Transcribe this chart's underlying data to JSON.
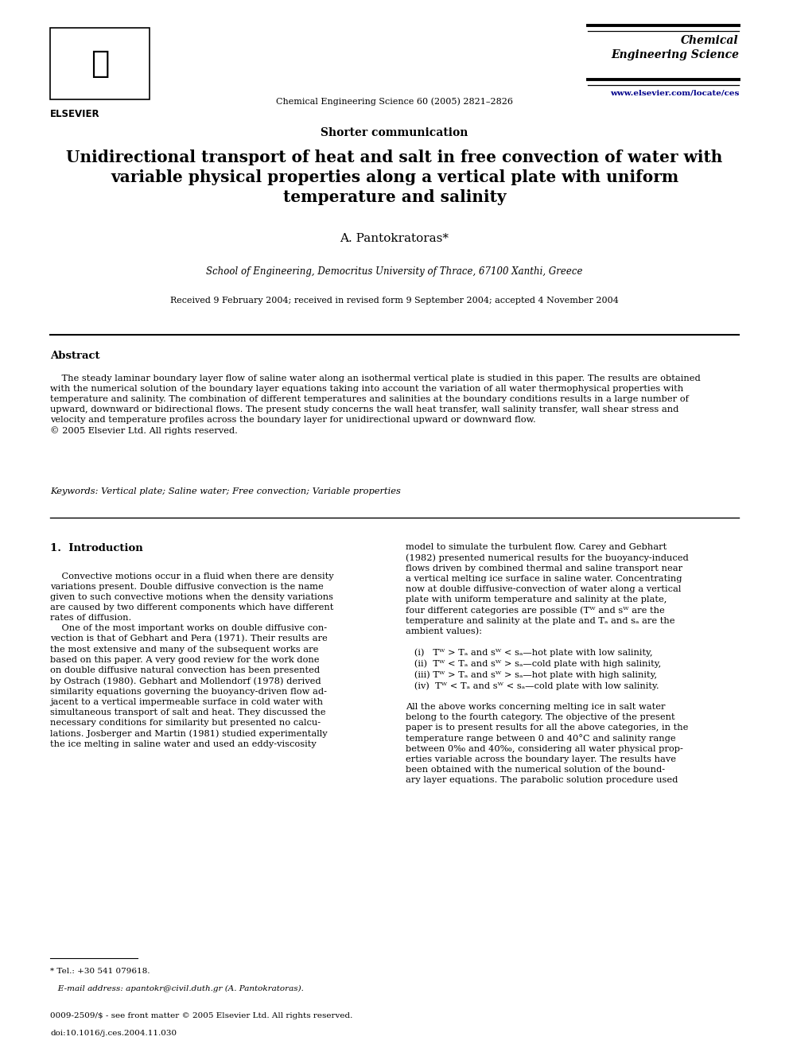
{
  "page_width": 9.92,
  "page_height": 13.23,
  "dpi": 100,
  "bg_color": "#ffffff",
  "journal_name": "Chemical\nEngineering Science",
  "journal_citation": "Chemical Engineering Science 60 (2005) 2821–2826",
  "journal_url": "www.elsevier.com/locate/ces",
  "article_type": "Shorter communication",
  "title_line1": "Unidirectional transport of heat and salt in free convection of water with",
  "title_line2": "variable physical properties along a vertical plate with uniform",
  "title_line3": "temperature and salinity",
  "author": "A. Pantokratoras*",
  "affiliation": "School of Engineering, Democritus University of Thrace, 67100 Xanthi, Greece",
  "received": "Received 9 February 2004; received in revised form 9 September 2004; accepted 4 November 2004",
  "abstract_title": "Abstract",
  "abstract_body": "    The steady laminar boundary layer flow of saline water along an isothermal vertical plate is studied in this paper. The results are obtained\nwith the numerical solution of the boundary layer equations taking into account the variation of all water thermophysical properties with\ntemperature and salinity. The combination of different temperatures and salinities at the boundary conditions results in a large number of\nupward, downward or bidirectional flows. The present study concerns the wall heat transfer, wall salinity transfer, wall shear stress and\nvelocity and temperature profiles across the boundary layer for unidirectional upward or downward flow.\n© 2005 Elsevier Ltd. All rights reserved.",
  "keywords_text": "Keywords: Vertical plate; Saline water; Free convection; Variable properties",
  "section1_title": "1.  Introduction",
  "col1_text": "    Convective motions occur in a fluid when there are density\nvariations present. Double diffusive convection is the name\ngiven to such convective motions when the density variations\nare caused by two different components which have different\nrates of diffusion.\n    One of the most important works on double diffusive con-\nvection is that of Gebhart and Pera (1971). Their results are\nthe most extensive and many of the subsequent works are\nbased on this paper. A very good review for the work done\non double diffusive natural convection has been presented\nby Ostrach (1980). Gebhart and Mollendorf (1978) derived\nsimilarity equations governing the buoyancy-driven flow ad-\njacent to a vertical impermeable surface in cold water with\nsimultaneous transport of salt and heat. They discussed the\nnecessary conditions for similarity but presented no calcu-\nlations. Josberger and Martin (1981) studied experimentally\nthe ice melting in saline water and used an eddy-viscosity",
  "col2_text": "model to simulate the turbulent flow. Carey and Gebhart\n(1982) presented numerical results for the buoyancy-induced\nflows driven by combined thermal and saline transport near\na vertical melting ice surface in saline water. Concentrating\nnow at double diffusive-convection of water along a vertical\nplate with uniform temperature and salinity at the plate,\nfour different categories are possible (Tᵂ and sᵂ are the\ntemperature and salinity at the plate and Tₐ and sₐ are the\nambient values):\n\n   (i)   Tᵂ > Tₐ and sᵂ < sₐ—hot plate with low salinity,\n   (ii)  Tᵂ < Tₐ and sᵂ > sₐ—cold plate with high salinity,\n   (iii) Tᵂ > Tₐ and sᵂ > sₐ—hot plate with high salinity,\n   (iv)  Tᵂ < Tₐ and sᵂ < sₐ—cold plate with low salinity.\n\nAll the above works concerning melting ice in salt water\nbelong to the fourth category. The objective of the present\npaper is to present results for all the above categories, in the\ntemperature range between 0 and 40°C and salinity range\nbetween 0‰ and 40‰, considering all water physical prop-\nerties variable across the boundary layer. The results have\nbeen obtained with the numerical solution of the bound-\nary layer equations. The parabolic solution procedure used",
  "footnote_line1": "* Tel.: +30 541 079618.",
  "footnote_line2": "   E-mail address: apantokr@civil.duth.gr (A. Pantokratoras).",
  "footer_line1": "0009-2509/$ - see front matter © 2005 Elsevier Ltd. All rights reserved.",
  "footer_line2": "doi:10.1016/j.ces.2004.11.030",
  "link_color": "#00008B",
  "text_color": "#000000",
  "col2_link_text": "Carey and Gebhart\n(1982)",
  "col1_link1": "Gebhart and Pera (1971)",
  "col1_link2": "Ostrach (1980)",
  "col1_link3": "Gebhart and Mollendorf (1978)",
  "col1_link4": "Josberger and Martin (1981)"
}
